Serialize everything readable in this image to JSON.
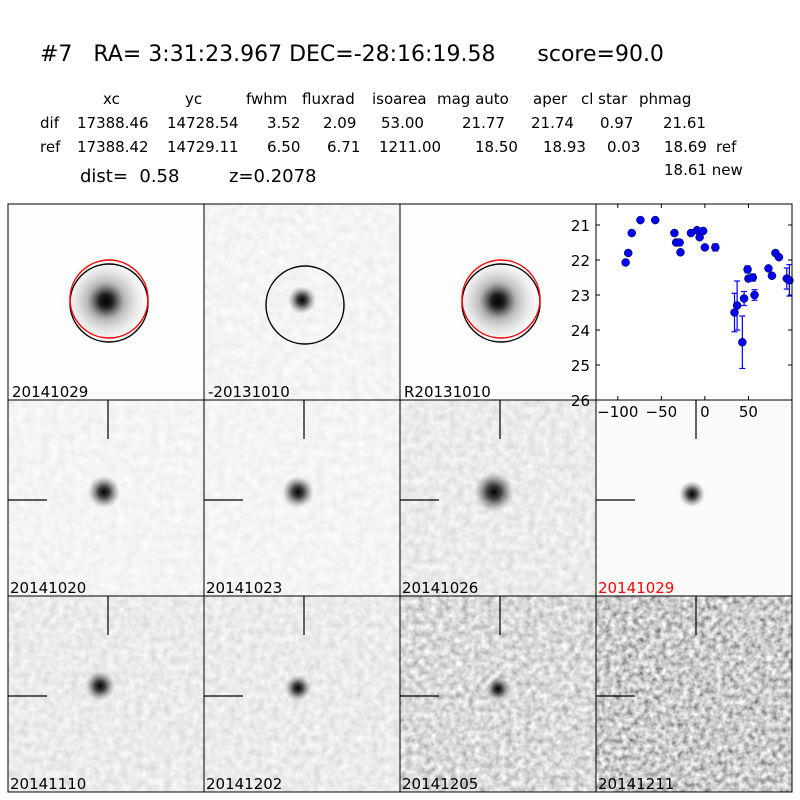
{
  "header": {
    "title": "#7   RA= 3:31:23.967 DEC=-28:16:19.58      score=90.0",
    "columns": [
      "xc",
      "yc",
      "fwhm",
      "fluxrad",
      "isoarea",
      "mag auto",
      "aper",
      "cl star",
      "phmag"
    ],
    "rows": [
      {
        "label": "dif",
        "values": [
          "17388.46",
          "14728.54",
          "3.52",
          "2.09",
          "53.00",
          "21.77",
          "21.74",
          "0.97",
          "21.61"
        ],
        "suffix": ""
      },
      {
        "label": "ref",
        "values": [
          "17388.42",
          "14729.11",
          "6.50",
          "6.71",
          "1211.00",
          "18.50",
          "18.93",
          "0.03",
          "18.69"
        ],
        "suffix": "ref"
      }
    ],
    "extra": "18.61 new",
    "dist": "dist=  0.58",
    "z": "z=0.2078"
  },
  "panels": [
    {
      "label": "20141029",
      "label_color": "#000000"
    },
    {
      "label": "-20131010",
      "label_color": "#000000"
    },
    {
      "label": "R20131010",
      "label_color": "#000000"
    },
    {
      "label": "20141020",
      "label_color": "#000000"
    },
    {
      "label": "20141023",
      "label_color": "#000000"
    },
    {
      "label": "20141026",
      "label_color": "#000000"
    },
    {
      "label": "20141029",
      "label_color": "#ff0000"
    },
    {
      "label": "20141110",
      "label_color": "#000000"
    },
    {
      "label": "20141202",
      "label_color": "#000000"
    },
    {
      "label": "20141205",
      "label_color": "#000000"
    },
    {
      "label": "20141211",
      "label_color": "#000000"
    }
  ],
  "chart_data": {
    "type": "scatter",
    "title": "",
    "xlabel": "",
    "ylabel": "",
    "xlim": [
      -125,
      100
    ],
    "ylim": [
      26,
      20.4
    ],
    "y_inverted": true,
    "grid": false,
    "xticks": [
      "-100",
      "-50",
      "0",
      "50"
    ],
    "xtick_values": [
      -100,
      -50,
      0,
      50
    ],
    "yticks": [
      "21",
      "22",
      "23",
      "24",
      "25",
      "26"
    ],
    "ytick_values": [
      21,
      22,
      23,
      24,
      25,
      26
    ],
    "marker_color": "#0000ff",
    "points": [
      {
        "x": -91,
        "y": 22.07,
        "err": 0
      },
      {
        "x": -88,
        "y": 21.8,
        "err": 0
      },
      {
        "x": -84,
        "y": 21.23,
        "err": 0
      },
      {
        "x": -74,
        "y": 20.86,
        "err": 0
      },
      {
        "x": -57,
        "y": 20.86,
        "err": 0
      },
      {
        "x": -35,
        "y": 21.23,
        "err": 0
      },
      {
        "x": -33,
        "y": 21.5,
        "err": 0
      },
      {
        "x": -29,
        "y": 21.5,
        "err": 0
      },
      {
        "x": -28,
        "y": 21.78,
        "err": 0
      },
      {
        "x": -16,
        "y": 21.23,
        "err": 0
      },
      {
        "x": -9,
        "y": 21.15,
        "err": 0
      },
      {
        "x": -6,
        "y": 21.35,
        "err": 0
      },
      {
        "x": -2,
        "y": 21.17,
        "err": 0
      },
      {
        "x": 0,
        "y": 21.64,
        "err": 0.05
      },
      {
        "x": 12,
        "y": 21.64,
        "err": 0.1
      },
      {
        "x": 34,
        "y": 23.5,
        "err": 0.55
      },
      {
        "x": 37,
        "y": 23.3,
        "err": 0.7
      },
      {
        "x": 43,
        "y": 24.35,
        "err": 0.75
      },
      {
        "x": 45,
        "y": 23.1,
        "err": 0.2
      },
      {
        "x": 49,
        "y": 22.27,
        "err": 0.1
      },
      {
        "x": 50,
        "y": 22.53,
        "err": 0.05
      },
      {
        "x": 55,
        "y": 22.5,
        "err": 0.1
      },
      {
        "x": 57,
        "y": 23.0,
        "err": 0.15
      },
      {
        "x": 73,
        "y": 22.24,
        "err": 0.05
      },
      {
        "x": 77,
        "y": 22.45,
        "err": 0.05
      },
      {
        "x": 81,
        "y": 21.8,
        "err": 0
      },
      {
        "x": 85,
        "y": 21.92,
        "err": 0
      },
      {
        "x": 94,
        "y": 22.53,
        "err": 0.3
      },
      {
        "x": 97,
        "y": 22.58,
        "err": 0.45
      }
    ]
  }
}
